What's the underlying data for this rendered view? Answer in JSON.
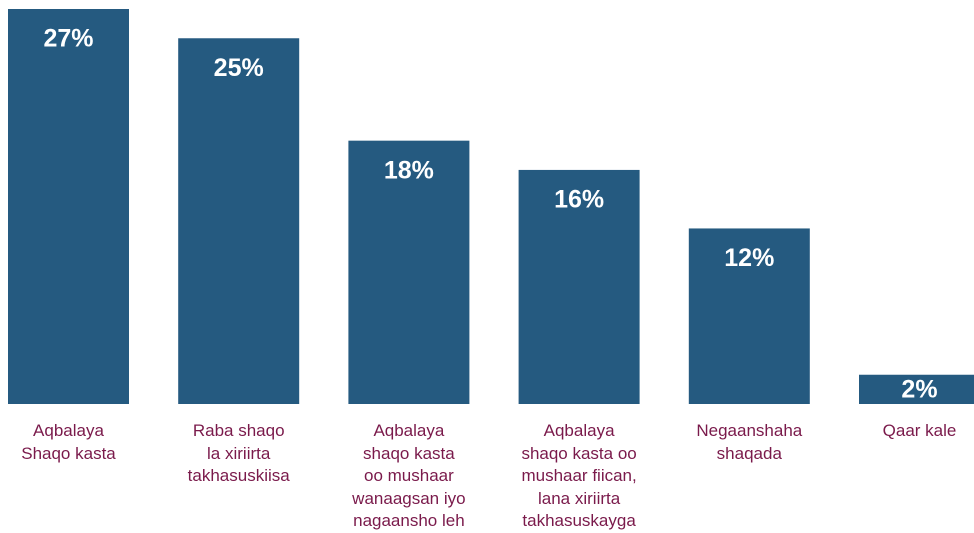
{
  "chart_data": {
    "type": "bar",
    "categories": [
      "Aqbalaya\nShaqo kasta",
      "Raba shaqo\nla xiriirta\ntakhasuskiisa",
      "Aqbalaya\nshaqo kasta\noo mushaar\nwanaagsan iyo\nnagaansho leh",
      "Aqbalaya\nshaqo kasta oo\nmushaar fiican,\nlana xiriirta\ntakhasuskayga",
      "Negaanshaha\nshaqada",
      "Qaar kale"
    ],
    "values": [
      27,
      25,
      18,
      16,
      12,
      2
    ],
    "value_labels": [
      "27%",
      "25%",
      "18%",
      "16%",
      "12%",
      "2%"
    ],
    "color": "#255a80"
  }
}
